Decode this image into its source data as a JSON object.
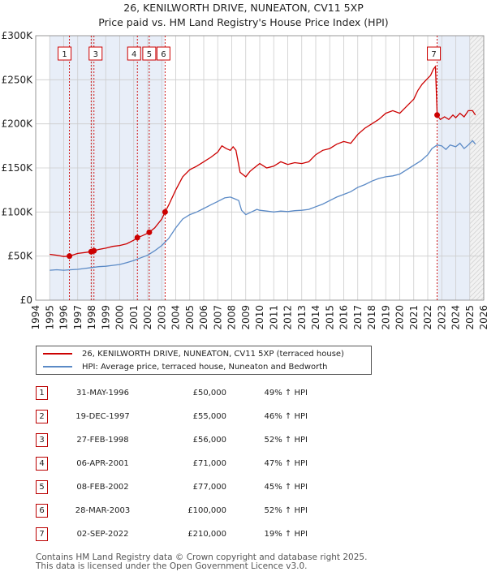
{
  "title_line1": "26, KENILWORTH DRIVE, NUNEATON, CV11 5XP",
  "title_line2": "Price paid vs. HM Land Registry's House Price Index (HPI)",
  "colors": {
    "red": "#cc0000",
    "blue": "#5b8ac6",
    "shade": "#e8eef8",
    "grid": "#cccccc"
  },
  "chart_data": {
    "type": "line",
    "title": "Price paid vs. HM Land Registry's House Price Index (HPI)",
    "xlabel": "",
    "ylabel": "",
    "xlim": [
      1994,
      2026
    ],
    "ylim": [
      0,
      300000
    ],
    "y_ticks": [
      0,
      50000,
      100000,
      150000,
      200000,
      250000,
      300000
    ],
    "y_tick_labels": [
      "£0",
      "£50K",
      "£100K",
      "£150K",
      "£200K",
      "£250K",
      "£300K"
    ],
    "x_ticks": [
      1994,
      1995,
      1996,
      1997,
      1998,
      1999,
      2000,
      2001,
      2002,
      2003,
      2004,
      2005,
      2006,
      2007,
      2008,
      2009,
      2010,
      2011,
      2012,
      2013,
      2014,
      2015,
      2016,
      2017,
      2018,
      2019,
      2020,
      2021,
      2022,
      2023,
      2024,
      2025,
      2026
    ],
    "shaded_ranges": [
      [
        1995.0,
        1996.4
      ],
      [
        1996.4,
        1998.2
      ],
      [
        1998.2,
        2001.3
      ],
      [
        2001.3,
        2002.1
      ],
      [
        2002.1,
        2003.2
      ],
      [
        2022.7,
        2025.0
      ]
    ],
    "shaded_future_start": 2025.0,
    "series": [
      {
        "name": "26, KENILWORTH DRIVE, NUNEATON, CV11 5XP (terraced house)",
        "x": [
          1995,
          1995.5,
          1996,
          1996.41,
          1996.8,
          1997,
          1997.5,
          1997.96,
          1998.16,
          1998.5,
          1999,
          1999.5,
          2000,
          2000.5,
          2001,
          2001.26,
          2001.6,
          2002,
          2002.11,
          2002.5,
          2003,
          2003.24,
          2003.5,
          2004,
          2004.5,
          2005,
          2005.5,
          2006,
          2006.5,
          2007,
          2007.3,
          2007.6,
          2007.9,
          2008.1,
          2008.3,
          2008.6,
          2009,
          2009.3,
          2009.6,
          2010,
          2010.5,
          2011,
          2011.5,
          2012,
          2012.5,
          2013,
          2013.5,
          2014,
          2014.5,
          2015,
          2015.5,
          2016,
          2016.5,
          2017,
          2017.5,
          2018,
          2018.5,
          2019,
          2019.5,
          2020,
          2020.5,
          2021,
          2021.3,
          2021.6,
          2021.9,
          2022.2,
          2022.4,
          2022.55,
          2022.67,
          2022.9,
          2023.2,
          2023.5,
          2023.8,
          2024,
          2024.3,
          2024.6,
          2024.9,
          2025.2,
          2025.4
        ],
        "y": [
          52000,
          51000,
          49500,
          50000,
          52000,
          53000,
          54000,
          55000,
          56000,
          57500,
          59000,
          61000,
          62000,
          64000,
          68000,
          71000,
          73000,
          76000,
          77000,
          82000,
          92000,
          100000,
          108000,
          125000,
          140000,
          148000,
          152000,
          157000,
          162000,
          168000,
          175000,
          172000,
          170000,
          174000,
          170000,
          145000,
          140000,
          146000,
          150000,
          155000,
          150000,
          152000,
          157000,
          154000,
          156000,
          155000,
          157000,
          165000,
          170000,
          172000,
          177000,
          180000,
          178000,
          188000,
          195000,
          200000,
          205000,
          212000,
          215000,
          212000,
          220000,
          228000,
          238000,
          245000,
          250000,
          255000,
          262000,
          265000,
          210000,
          205000,
          208000,
          205000,
          210000,
          207000,
          212000,
          208000,
          215000,
          215000,
          210000
        ]
      },
      {
        "name": "HPI: Average price, terraced house, Nuneaton and Bedworth",
        "x": [
          1995,
          1995.5,
          1996,
          1996.5,
          1997,
          1997.5,
          1998,
          1998.5,
          1999,
          1999.5,
          2000,
          2000.5,
          2001,
          2001.5,
          2002,
          2002.5,
          2003,
          2003.5,
          2004,
          2004.5,
          2005,
          2005.5,
          2006,
          2006.5,
          2007,
          2007.5,
          2007.9,
          2008.2,
          2008.5,
          2008.7,
          2009,
          2009.4,
          2009.8,
          2010,
          2010.5,
          2011,
          2011.5,
          2012,
          2012.5,
          2013,
          2013.5,
          2014,
          2014.5,
          2015,
          2015.5,
          2016,
          2016.5,
          2017,
          2017.5,
          2018,
          2018.5,
          2019,
          2019.5,
          2020,
          2020.5,
          2021,
          2021.5,
          2022,
          2022.3,
          2022.67,
          2023,
          2023.3,
          2023.6,
          2024,
          2024.3,
          2024.6,
          2024.9,
          2025.2,
          2025.4
        ],
        "y": [
          34000,
          34500,
          34000,
          34500,
          35000,
          36000,
          37000,
          38000,
          38500,
          39500,
          40500,
          42500,
          45000,
          48000,
          51000,
          56000,
          62000,
          70000,
          82000,
          92000,
          97000,
          100000,
          104000,
          108000,
          112000,
          116000,
          117000,
          115000,
          113000,
          102000,
          97000,
          100000,
          103000,
          102000,
          101000,
          100000,
          101000,
          100500,
          101500,
          102000,
          103000,
          106000,
          109000,
          113000,
          117000,
          120000,
          123000,
          128000,
          131000,
          135000,
          138000,
          140000,
          141000,
          143000,
          148000,
          153000,
          158000,
          165000,
          172000,
          176000,
          175000,
          171000,
          176000,
          174000,
          178000,
          172000,
          176000,
          181000,
          177000
        ]
      }
    ],
    "sales": [
      {
        "n": "1",
        "x": 1996.41,
        "price": 50000
      },
      {
        "n": "2",
        "x": 1997.96,
        "price": 55000
      },
      {
        "n": "3",
        "x": 1998.16,
        "price": 56000
      },
      {
        "n": "4",
        "x": 2001.26,
        "price": 71000
      },
      {
        "n": "5",
        "x": 2002.11,
        "price": 77000
      },
      {
        "n": "6",
        "x": 2003.24,
        "price": 100000
      },
      {
        "n": "7",
        "x": 2022.67,
        "price": 210000
      }
    ],
    "top_labels": [
      "1",
      "3",
      "4",
      "5",
      "6",
      "7"
    ]
  },
  "legend": {
    "red_label": "26, KENILWORTH DRIVE, NUNEATON, CV11 5XP (terraced house)",
    "blue_label": "HPI: Average price, terraced house, Nuneaton and Bedworth"
  },
  "transactions": [
    {
      "n": "1",
      "date": "31-MAY-1996",
      "price": "£50,000",
      "hpi": "49% ↑ HPI"
    },
    {
      "n": "2",
      "date": "19-DEC-1997",
      "price": "£55,000",
      "hpi": "46% ↑ HPI"
    },
    {
      "n": "3",
      "date": "27-FEB-1998",
      "price": "£56,000",
      "hpi": "52% ↑ HPI"
    },
    {
      "n": "4",
      "date": "06-APR-2001",
      "price": "£71,000",
      "hpi": "47% ↑ HPI"
    },
    {
      "n": "5",
      "date": "08-FEB-2002",
      "price": "£77,000",
      "hpi": "45% ↑ HPI"
    },
    {
      "n": "6",
      "date": "28-MAR-2003",
      "price": "£100,000",
      "hpi": "52% ↑ HPI"
    },
    {
      "n": "7",
      "date": "02-SEP-2022",
      "price": "£210,000",
      "hpi": "19% ↑ HPI"
    }
  ],
  "footer_line1": "Contains HM Land Registry data © Crown copyright and database right 2025.",
  "footer_line2": "This data is licensed under the Open Government Licence v3.0."
}
